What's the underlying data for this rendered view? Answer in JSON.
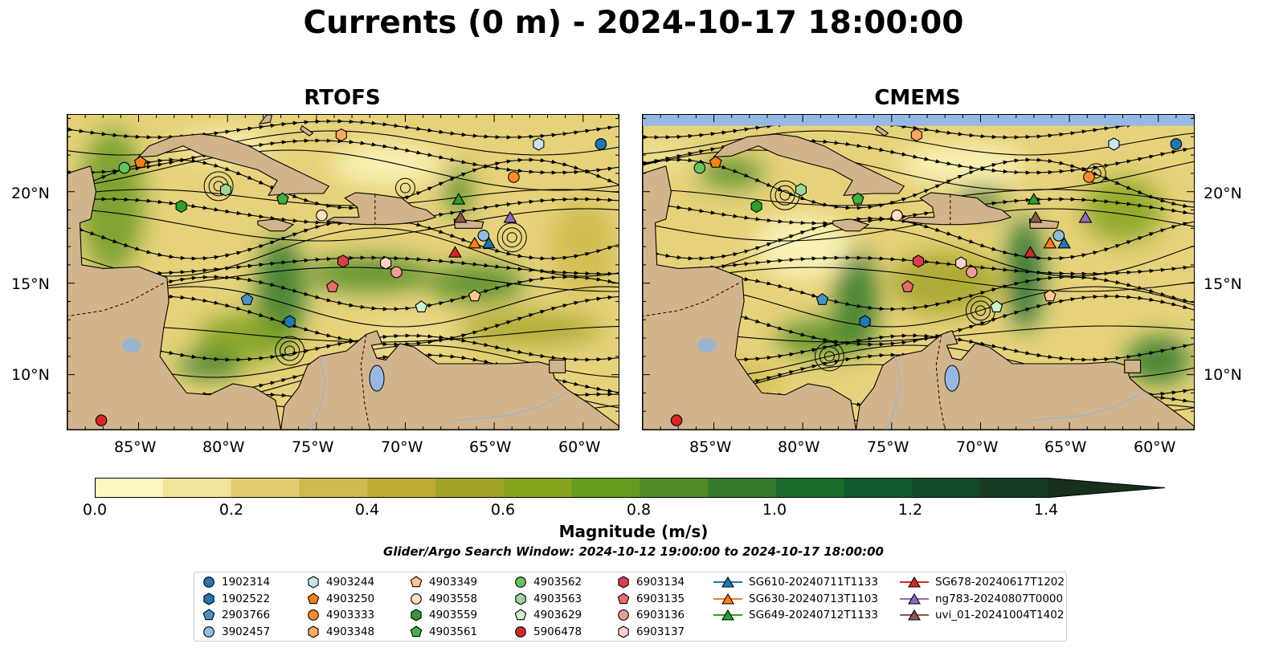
{
  "title": "Currents (0 m) - 2024-10-17 18:00:00",
  "panels": [
    {
      "title": "RTOFS"
    },
    {
      "title": "CMEMS"
    }
  ],
  "axes": {
    "lat_ticks": [
      "20°N",
      "15°N",
      "10°N"
    ],
    "lon_ticks": [
      "85°W",
      "80°W",
      "75°W",
      "70°W",
      "65°W",
      "60°W"
    ],
    "lat_range": [
      7,
      24.2
    ],
    "lon_range": [
      -89,
      -58
    ]
  },
  "colorbar": {
    "label": "Magnitude (m/s)",
    "ticks": [
      "0.0",
      "0.2",
      "0.4",
      "0.6",
      "0.8",
      "1.0",
      "1.2",
      "1.4"
    ],
    "range": [
      0,
      1.5
    ],
    "extend": "max",
    "colors": [
      "#fdf7c0",
      "#f0e39a",
      "#e0cd70",
      "#cfbb4c",
      "#bcad37",
      "#a3a42a",
      "#85a31d",
      "#679a1f",
      "#4e8a24",
      "#337a29",
      "#1b6b2e",
      "#0f5a2e",
      "#144a2a",
      "#173b24",
      "#18301d"
    ]
  },
  "search_window": "Glider/Argo Search Window: 2024-10-12 19:00:00 to 2024-10-17 18:00:00",
  "colors": {
    "land": "#d2b48c",
    "water_body": "#96b9e3",
    "rivers": "#9ab3cc"
  },
  "legend": {
    "columns": [
      [
        {
          "label": "1902314",
          "marker": "circle",
          "color": "#1f77b4"
        },
        {
          "label": "1902522",
          "marker": "hexagon",
          "color": "#1f77b4"
        },
        {
          "label": "2903766",
          "marker": "pentagon",
          "color": "#4a92cc"
        },
        {
          "label": "3902457",
          "marker": "circle",
          "color": "#8fbde0"
        }
      ],
      [
        {
          "label": "4903244",
          "marker": "hexagon",
          "color": "#c9e4f5"
        },
        {
          "label": "4903250",
          "marker": "pentagon",
          "color": "#ff7f0e"
        },
        {
          "label": "4903333",
          "marker": "circle",
          "color": "#ff8b2a"
        },
        {
          "label": "4903348",
          "marker": "hexagon",
          "color": "#ffa95a"
        }
      ],
      [
        {
          "label": "4903349",
          "marker": "pentagon",
          "color": "#ffc68f"
        },
        {
          "label": "4903558",
          "marker": "circle",
          "color": "#ffe2c4"
        },
        {
          "label": "4903559",
          "marker": "hexagon",
          "color": "#2ca02c"
        },
        {
          "label": "4903561",
          "marker": "pentagon",
          "color": "#3fb13f"
        }
      ],
      [
        {
          "label": "4903562",
          "marker": "circle",
          "color": "#62c462"
        },
        {
          "label": "4903563",
          "marker": "hexagon",
          "color": "#9ad99a"
        },
        {
          "label": "4903629",
          "marker": "pentagon",
          "color": "#cdf0cd"
        },
        {
          "label": "5906478",
          "marker": "circle",
          "color": "#d62728"
        }
      ],
      [
        {
          "label": "6903134",
          "marker": "hexagon",
          "color": "#d9404a"
        },
        {
          "label": "6903135",
          "marker": "pentagon",
          "color": "#e86b6f"
        },
        {
          "label": "6903136",
          "marker": "circle",
          "color": "#f29b9b"
        },
        {
          "label": "6903137",
          "marker": "hexagon",
          "color": "#fcd0cf"
        }
      ],
      [
        {
          "label": "SG610-20240711T1133",
          "marker": "triangle",
          "color": "#1f77b4"
        },
        {
          "label": "SG630-20240713T1103",
          "marker": "triangle",
          "color": "#ff7f0e"
        },
        {
          "label": "SG649-20240712T1133",
          "marker": "triangle",
          "color": "#2ca02c"
        }
      ],
      [
        {
          "label": "SG678-20240617T1202",
          "marker": "triangle",
          "color": "#d62728"
        },
        {
          "label": "ng783-20240807T0000",
          "marker": "triangle",
          "color": "#9467bd"
        },
        {
          "label": "uvi_01-20241004T1402",
          "marker": "triangle",
          "color": "#8c564b"
        }
      ]
    ]
  },
  "observations": [
    {
      "id": "1902314",
      "lon": -59,
      "lat": 22.6
    },
    {
      "id": "1902522",
      "lon": -76.5,
      "lat": 12.9
    },
    {
      "id": "2903766",
      "lon": -78.9,
      "lat": 14.1
    },
    {
      "id": "3902457",
      "lon": -65.6,
      "lat": 17.6
    },
    {
      "id": "4903244",
      "lon": -62.5,
      "lat": 22.6
    },
    {
      "id": "4903250",
      "lon": -84.9,
      "lat": 21.6
    },
    {
      "id": "4903333",
      "lon": -63.9,
      "lat": 20.8
    },
    {
      "id": "4903348",
      "lon": -73.6,
      "lat": 23.1
    },
    {
      "id": "4903349",
      "lon": -66.1,
      "lat": 14.3
    },
    {
      "id": "4903558",
      "lon": -74.7,
      "lat": 18.7
    },
    {
      "id": "4903559",
      "lon": -82.6,
      "lat": 19.2
    },
    {
      "id": "4903561",
      "lon": -76.9,
      "lat": 19.6
    },
    {
      "id": "4903562",
      "lon": -85.8,
      "lat": 21.3
    },
    {
      "id": "4903563",
      "lon": -80.1,
      "lat": 20.1
    },
    {
      "id": "4903629",
      "lon": -69.1,
      "lat": 13.7
    },
    {
      "id": "5906478",
      "lon": -87.1,
      "lat": 7.5
    },
    {
      "id": "6903134",
      "lon": -73.5,
      "lat": 16.2
    },
    {
      "id": "6903135",
      "lon": -74.1,
      "lat": 14.8
    },
    {
      "id": "6903136",
      "lon": -70.5,
      "lat": 15.6
    },
    {
      "id": "6903137",
      "lon": -71.1,
      "lat": 16.1
    },
    {
      "id": "SG610-20240711T1133",
      "lon": -65.3,
      "lat": 17.2
    },
    {
      "id": "SG630-20240713T1103",
      "lon": -66.1,
      "lat": 17.2
    },
    {
      "id": "SG649-20240712T1133",
      "lon": -67,
      "lat": 19.6
    },
    {
      "id": "SG678-20240617T1202",
      "lon": -67.2,
      "lat": 16.7
    },
    {
      "id": "ng783-20240807T0000",
      "lon": -64.1,
      "lat": 18.6
    },
    {
      "id": "uvi_01-20241004T1402",
      "lon": -66.9,
      "lat": 18.6
    }
  ]
}
